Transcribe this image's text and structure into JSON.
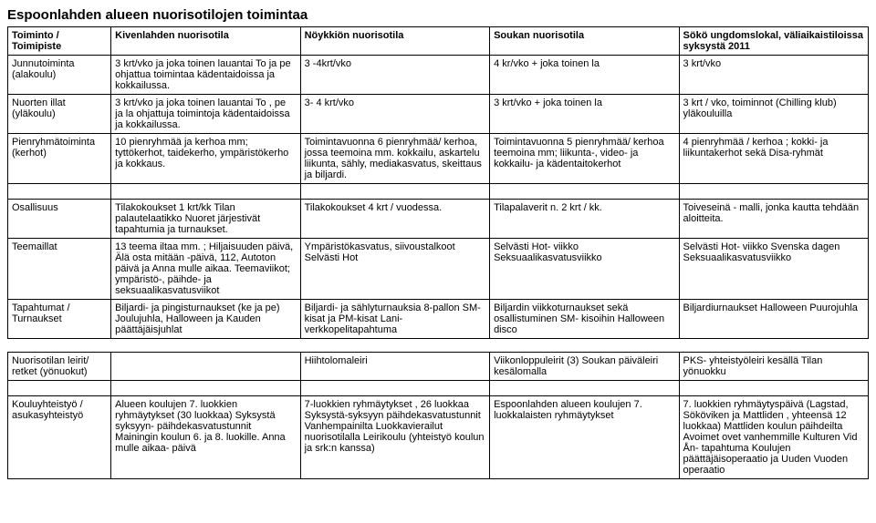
{
  "title": "Espoonlahden alueen nuorisotilojen toimintaa",
  "headers": {
    "c0": "Toiminto / Toimipiste",
    "c1": "Kivenlahden nuorisotila",
    "c2": "Nöykkiön nuorisotila",
    "c3": "Soukan nuorisotila",
    "c4": "Sökö ungdomslokal, väliaikaistiloissa syksystä 2011"
  },
  "rows": [
    {
      "label": "Junnutoiminta (alakoulu)",
      "c1": "3 krt/vko ja joka toinen lauantai To ja pe ohjattua toimintaa kädentaidoissa ja kokkailussa.",
      "c2": "3 -4krt/vko",
      "c3": "4 kr/vko + joka toinen la",
      "c4": "3 krt/vko"
    },
    {
      "label": "Nuorten illat (yläkoulu)",
      "c1": "3 krt/vko ja joka toinen lauantai To , pe ja la ohjattuja toimintoja kädentaidoissa ja kokkailussa.",
      "c2": "3- 4 krt/vko",
      "c3": "3 krt/vko + joka toinen la",
      "c4": "3 krt / vko, toiminnot (Chilling klub) yläkouluilla"
    },
    {
      "label": "Pienryhmätoiminta (kerhot)",
      "c1": "10 pienryhmää ja kerhoa mm; tyttökerhot, taidekerho, ympäristökerho ja kokkaus.",
      "c2": "Toimintavuonna 6 pienryhmää/ kerhoa, jossa teemoina mm. kokkailu, askartelu liikunta, sähly, mediakasvatus, skeittaus ja biljardi.",
      "c3": "Toimintavuonna 5 pienryhmää/ kerhoa teemoina mm; liikunta-, video- ja kokkailu- ja kädentaitokerhot",
      "c4": "4 pienryhmää / kerhoa ; kokki- ja liikuntakerhot sekä Disa-ryhmät"
    },
    {
      "label": "Osallisuus",
      "c1": "Tilakokoukset 1 krt/kk Tilan palautelaatikko Nuoret järjestivät tapahtumia ja turnaukset.",
      "c2": "Tilakokoukset 4 krt / vuodessa.",
      "c3": "Tilapalaverit n. 2 krt / kk.",
      "c4": "Toiveseinä - malli, jonka kautta tehdään aloitteita."
    },
    {
      "label": "Teemaillat",
      "c1": "13 teema iltaa mm. ; Hiljaisuuden päivä, Älä osta mitään -päivä, 112, Autoton päivä ja Anna mulle aikaa. Teemaviikot; ympäristö-, päihde- ja seksuaalikasvatusviikot",
      "c2": "Ympäristökasvatus, siivoustalkoot Selvästi Hot",
      "c3": "Selvästi Hot- viikko Seksuaalikasvatusviikko",
      "c4": "Selvästi Hot- viikko Svenska dagen Seksuaalikasvatusviikko"
    },
    {
      "label": "Tapahtumat / Turnaukset",
      "c1": "Biljardi- ja pingisturnaukset (ke ja pe) Joulujuhla, Halloween ja Kauden päättäjäisjuhlat",
      "c2": "Biljardi- ja sählyturnauksia 8-pallon SM-kisat ja PM-kisat Lani-verkkopelitapahtuma",
      "c3": "Biljardin viikkoturnaukset sekä osallistuminen SM- kisoihin Halloween disco",
      "c4": "Biljardiurnaukset Halloween Puurojuhla"
    },
    {
      "label": "Nuorisotilan leirit/ retket (yönuokut)",
      "c1": "",
      "c2": "Hiihtolomaleiri",
      "c3": "Viikonloppuleirit (3) Soukan päiväleiri kesälomalla",
      "c4": "PKS- yhteistyöleiri kesällä Tilan yönuokku"
    },
    {
      "label": "Kouluyhteistyö / asukasyhteistyö",
      "c1": "Alueen koulujen 7. luokkien ryhmäytykset (30 luokkaa) Syksystä syksyyn- päihdekasvatustunnit Mainingin koulun 6. ja 8. luokille. Anna mulle aikaa- päivä",
      "c2": "7-luokkien ryhmäytykset , 26 luokkaa Syksystä-syksyyn päihdekasvatustunnit Vanhempainilta Luokkavierailut nuorisotilalla Leirikoulu (yhteistyö koulun ja srk:n kanssa)",
      "c3": "Espoonlahden alueen koulujen 7. luokkalaisten ryhmäytykset",
      "c4": "7. luokkien ryhmäytyspäivä (Lagstad, Sököviken ja Mattliden , yhteensä 12 luokkaa) Mattliden koulun päihdeilta Avoimet ovet vanhemmille Kulturen Vid Ån- tapahtuma Koulujen päättäjäisoperaatio ja Uuden Vuoden operaatio"
    }
  ]
}
